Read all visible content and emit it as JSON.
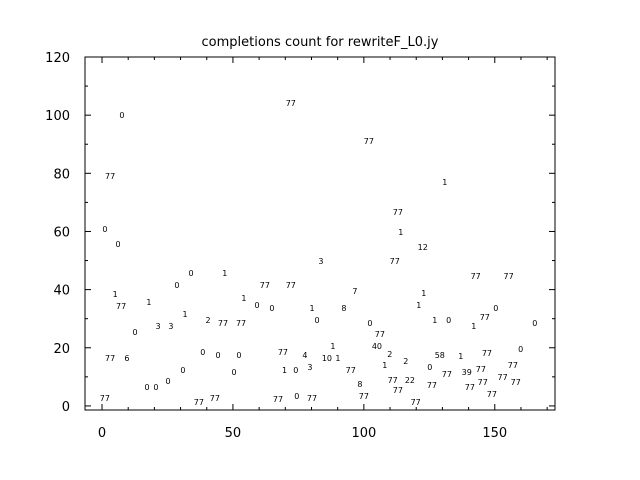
{
  "chart_data": {
    "type": "scatter",
    "title": "completions count for rewriteF_L0.jy",
    "xlabel": "",
    "ylabel": "",
    "xlim": [
      -6.5,
      173
    ],
    "ylim": [
      -1.4,
      120
    ],
    "x_ticks": [
      "0",
      "50",
      "100",
      "150"
    ],
    "y_ticks": [
      "0",
      "20",
      "40",
      "60",
      "80",
      "100",
      "120"
    ],
    "grid": false,
    "marker": "text label",
    "points": [
      {
        "x": 72.1,
        "y": 104.2,
        "label": "77"
      },
      {
        "x": 7.6,
        "y": 100,
        "label": "0"
      },
      {
        "x": 101.9,
        "y": 91.1,
        "label": "77"
      },
      {
        "x": 3.1,
        "y": 79.1,
        "label": "77"
      },
      {
        "x": 130.9,
        "y": 77,
        "label": "1"
      },
      {
        "x": 113,
        "y": 66.7,
        "label": "77"
      },
      {
        "x": 1.1,
        "y": 60.9,
        "label": "0"
      },
      {
        "x": 114.1,
        "y": 59.9,
        "label": "1"
      },
      {
        "x": 6.1,
        "y": 55.7,
        "label": "0"
      },
      {
        "x": 122.5,
        "y": 54.7,
        "label": "12"
      },
      {
        "x": 111.8,
        "y": 49.9,
        "label": "77"
      },
      {
        "x": 83.6,
        "y": 49.9,
        "label": "3"
      },
      {
        "x": 34,
        "y": 45.7,
        "label": "0"
      },
      {
        "x": 46.9,
        "y": 45.7,
        "label": "1"
      },
      {
        "x": 142.7,
        "y": 44.7,
        "label": "77"
      },
      {
        "x": 155.3,
        "y": 44.7,
        "label": "77"
      },
      {
        "x": 62.2,
        "y": 41.6,
        "label": "77"
      },
      {
        "x": 72.1,
        "y": 41.6,
        "label": "77"
      },
      {
        "x": 28.6,
        "y": 41.6,
        "label": "0"
      },
      {
        "x": 96.6,
        "y": 39.5,
        "label": "7"
      },
      {
        "x": 122.9,
        "y": 38.9,
        "label": "1"
      },
      {
        "x": 5,
        "y": 38.5,
        "label": "1"
      },
      {
        "x": 7.3,
        "y": 37.8,
        "label": "77"
      },
      {
        "x": 54.2,
        "y": 37.1,
        "label": "1"
      },
      {
        "x": 17.9,
        "y": 35.8,
        "label": "1"
      },
      {
        "x": 59.2,
        "y": 34.7,
        "label": "0"
      },
      {
        "x": 64.9,
        "y": 33.7,
        "label": "0"
      },
      {
        "x": 80.2,
        "y": 33.7,
        "label": "1"
      },
      {
        "x": 92.4,
        "y": 33.7,
        "label": "8"
      },
      {
        "x": 150.4,
        "y": 33.7,
        "label": "0"
      },
      {
        "x": 121,
        "y": 34.7,
        "label": "1"
      },
      {
        "x": 31.7,
        "y": 31.6,
        "label": "1"
      },
      {
        "x": 146.2,
        "y": 30.6,
        "label": "77"
      },
      {
        "x": 82.1,
        "y": 29.6,
        "label": "0"
      },
      {
        "x": 40.5,
        "y": 29.6,
        "label": "2"
      },
      {
        "x": 46.2,
        "y": 28.5,
        "label": "77"
      },
      {
        "x": 53.1,
        "y": 28.5,
        "label": "77"
      },
      {
        "x": 127.1,
        "y": 29.6,
        "label": "1"
      },
      {
        "x": 132.4,
        "y": 29.6,
        "label": "0"
      },
      {
        "x": 102.3,
        "y": 28.5,
        "label": "0"
      },
      {
        "x": 165.3,
        "y": 28.5,
        "label": "0"
      },
      {
        "x": 21.4,
        "y": 27.5,
        "label": "3"
      },
      {
        "x": 26.3,
        "y": 27.5,
        "label": "3"
      },
      {
        "x": 142,
        "y": 27.5,
        "label": "1"
      },
      {
        "x": 12.6,
        "y": 25.4,
        "label": "0"
      },
      {
        "x": 106.1,
        "y": 24.8,
        "label": "77"
      },
      {
        "x": 88.2,
        "y": 20.6,
        "label": "1"
      },
      {
        "x": 105,
        "y": 20.6,
        "label": "40"
      },
      {
        "x": 159.9,
        "y": 19.6,
        "label": "0"
      },
      {
        "x": 69.1,
        "y": 18.6,
        "label": "77"
      },
      {
        "x": 38.5,
        "y": 18.6,
        "label": "0"
      },
      {
        "x": 44.3,
        "y": 17.5,
        "label": "0"
      },
      {
        "x": 52.3,
        "y": 17.5,
        "label": "0"
      },
      {
        "x": 77.5,
        "y": 17.5,
        "label": "4"
      },
      {
        "x": 108,
        "y": 17.5,
        "label": "1"
      },
      {
        "x": 129,
        "y": 17.5,
        "label": "58"
      },
      {
        "x": 137,
        "y": 17.2,
        "label": "1"
      },
      {
        "x": 147,
        "y": 18.2,
        "label": "77"
      },
      {
        "x": 156.9,
        "y": 17.5,
        "label": "77"
      },
      {
        "x": 3.1,
        "y": 16.5,
        "label": "77"
      },
      {
        "x": 9.5,
        "y": 16.5,
        "label": "6"
      },
      {
        "x": 85.9,
        "y": 16.5,
        "label": "10"
      },
      {
        "x": 90.1,
        "y": 16.5,
        "label": "1"
      },
      {
        "x": 144.7,
        "y": 16.2,
        "label": "77"
      },
      {
        "x": 131.7,
        "y": 14.4,
        "label": "77"
      },
      {
        "x": 135.1,
        "y": 15.1,
        "label": "39"
      },
      {
        "x": 116,
        "y": 15.5,
        "label": "2"
      },
      {
        "x": 109.9,
        "y": 14.4,
        "label": "2"
      },
      {
        "x": 125.2,
        "y": 13.4,
        "label": "0"
      },
      {
        "x": 111,
        "y": 12.4,
        "label": "77"
      },
      {
        "x": 117.6,
        "y": 12.4,
        "label": "22"
      },
      {
        "x": 95,
        "y": 12.4,
        "label": "77"
      },
      {
        "x": 126,
        "y": 10.7,
        "label": "77"
      },
      {
        "x": 153,
        "y": 13.4,
        "label": "77"
      },
      {
        "x": 153.8,
        "y": 11.7,
        "label": "77"
      },
      {
        "x": 141.2,
        "y": 11.7,
        "label": "77"
      },
      {
        "x": 140.5,
        "y": 10,
        "label": "77"
      },
      {
        "x": 74,
        "y": 12.4,
        "label": "0"
      },
      {
        "x": 69.7,
        "y": 12.4,
        "label": "1"
      },
      {
        "x": 79.4,
        "y": 13.4,
        "label": "3"
      },
      {
        "x": 30.9,
        "y": 12.4,
        "label": "0"
      },
      {
        "x": 50.4,
        "y": 11.7,
        "label": "0"
      },
      {
        "x": 25.2,
        "y": 8.6,
        "label": "0"
      },
      {
        "x": 17.2,
        "y": 6.5,
        "label": "0"
      },
      {
        "x": 20.6,
        "y": 6.5,
        "label": "0"
      },
      {
        "x": 98.5,
        "y": 7.6,
        "label": "8"
      },
      {
        "x": 113,
        "y": 5.5,
        "label": "77"
      },
      {
        "x": 148.9,
        "y": 7.6,
        "label": "77"
      },
      {
        "x": 100,
        "y": 3.4,
        "label": "77"
      },
      {
        "x": 67.2,
        "y": 2.4,
        "label": "77"
      },
      {
        "x": 74.4,
        "y": 3.4,
        "label": "0"
      },
      {
        "x": 37,
        "y": 1.4,
        "label": "77"
      },
      {
        "x": 119.8,
        "y": 1.4,
        "label": "77"
      },
      {
        "x": 1.1,
        "y": -0.7,
        "label": "77"
      },
      {
        "x": 43.1,
        "y": -0.7,
        "label": "77"
      },
      {
        "x": 76,
        "y": -0.7,
        "label": "77"
      }
    ]
  }
}
